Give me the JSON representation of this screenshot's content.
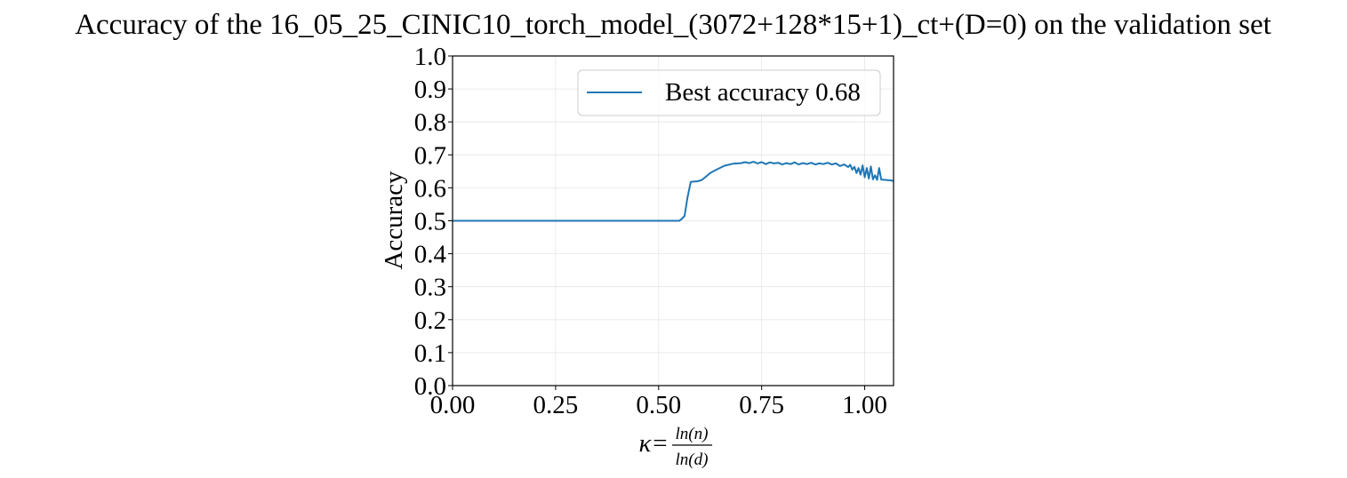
{
  "chart_data": {
    "type": "line",
    "title": "Accuracy of the 16_05_25_CINIC10_torch_model_(3072+128*15+1)_ct+(D=0) on the validation set",
    "xlabel_main": "κ=",
    "xlabel_num": "ln(n)",
    "xlabel_den": "ln(d)",
    "ylabel": "Accuracy",
    "xlim": [
      0.0,
      1.07
    ],
    "ylim": [
      0.0,
      1.0
    ],
    "x_ticks": [
      0.0,
      0.25,
      0.5,
      0.75,
      1.0
    ],
    "x_tick_labels": [
      "0.00",
      "0.25",
      "0.50",
      "0.75",
      "1.00"
    ],
    "y_ticks": [
      0.0,
      0.1,
      0.2,
      0.3,
      0.4,
      0.5,
      0.6,
      0.7,
      0.8,
      0.9,
      1.0
    ],
    "y_tick_labels": [
      "0.0",
      "0.1",
      "0.2",
      "0.3",
      "0.4",
      "0.5",
      "0.6",
      "0.7",
      "0.8",
      "0.9",
      "1.0"
    ],
    "grid": true,
    "legend_position": "top-right",
    "series": [
      {
        "name": "Best accuracy 0.68",
        "color": "#1f77b4",
        "x": [
          0.0,
          0.1,
          0.2,
          0.3,
          0.4,
          0.5,
          0.55,
          0.556,
          0.563,
          0.57,
          0.578,
          0.585,
          0.595,
          0.605,
          0.615,
          0.625,
          0.64,
          0.66,
          0.68,
          0.7,
          0.71,
          0.72,
          0.73,
          0.74,
          0.75,
          0.76,
          0.77,
          0.78,
          0.79,
          0.8,
          0.81,
          0.82,
          0.83,
          0.84,
          0.85,
          0.86,
          0.87,
          0.88,
          0.89,
          0.9,
          0.91,
          0.92,
          0.93,
          0.94,
          0.95,
          0.96,
          0.965,
          0.97,
          0.975,
          0.98,
          0.985,
          0.99,
          0.995,
          1.0,
          1.005,
          1.01,
          1.015,
          1.02,
          1.025,
          1.03,
          1.035,
          1.04,
          1.05,
          1.06,
          1.07
        ],
        "y": [
          0.5,
          0.5,
          0.5,
          0.5,
          0.5,
          0.5,
          0.5,
          0.505,
          0.515,
          0.57,
          0.618,
          0.619,
          0.62,
          0.624,
          0.634,
          0.645,
          0.655,
          0.667,
          0.673,
          0.675,
          0.678,
          0.675,
          0.679,
          0.674,
          0.678,
          0.672,
          0.677,
          0.674,
          0.676,
          0.671,
          0.675,
          0.672,
          0.677,
          0.671,
          0.675,
          0.672,
          0.676,
          0.671,
          0.674,
          0.672,
          0.676,
          0.671,
          0.674,
          0.666,
          0.671,
          0.663,
          0.67,
          0.655,
          0.664,
          0.645,
          0.66,
          0.64,
          0.668,
          0.632,
          0.66,
          0.628,
          0.665,
          0.626,
          0.638,
          0.624,
          0.66,
          0.625,
          0.624,
          0.623,
          0.621
        ]
      }
    ]
  }
}
